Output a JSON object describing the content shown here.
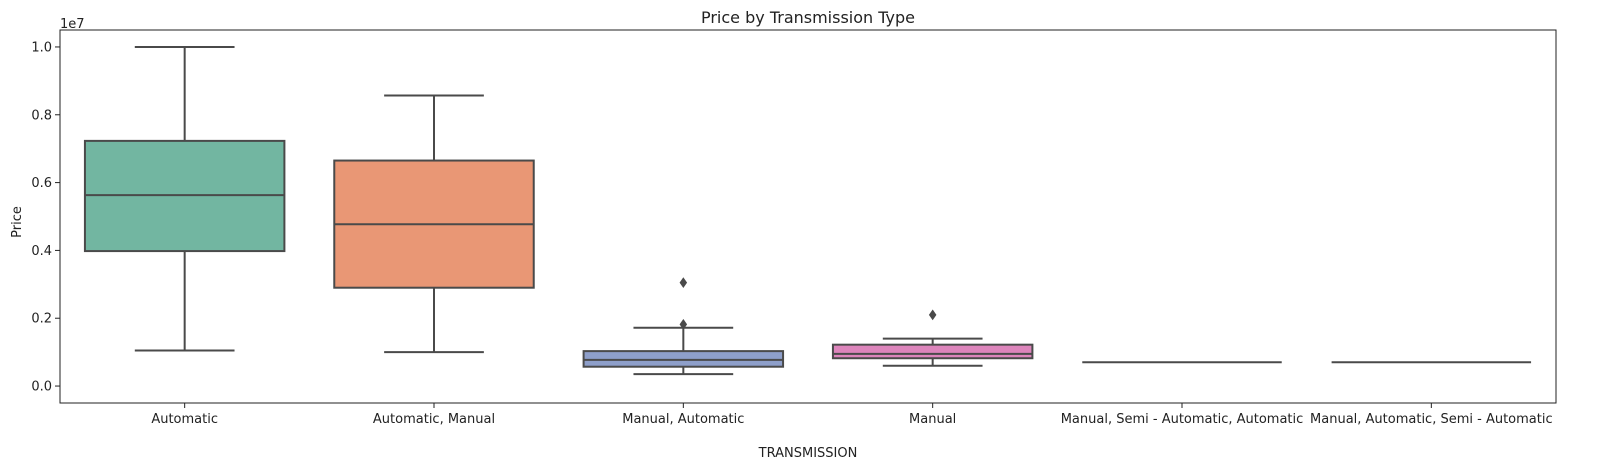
{
  "chart_data": {
    "type": "box",
    "title": "Price by Transmission Type",
    "xlabel": "TRANSMISSION",
    "ylabel": "Price",
    "y_scale_label": "1e7",
    "ylim": [
      -0.05,
      1.05
    ],
    "y_ticks": [
      0.0,
      0.2,
      0.4,
      0.6,
      0.8,
      1.0
    ],
    "y_tick_labels": [
      "0.0",
      "0.2",
      "0.4",
      "0.6",
      "0.8",
      "1.0"
    ],
    "grid": false,
    "legend": "none",
    "categories": [
      "Automatic",
      "Automatic, Manual",
      "Manual, Automatic",
      "Manual",
      "Manual, Semi - Automatic, Automatic",
      "Manual, Automatic, Semi - Automatic"
    ],
    "boxes": [
      {
        "color": "#72b6a1",
        "whisker_low": 0.105,
        "q1": 0.398,
        "median": 0.563,
        "q3": 0.723,
        "whisker_high": 1.0,
        "outliers": []
      },
      {
        "color": "#e99775",
        "whisker_low": 0.1,
        "q1": 0.29,
        "median": 0.477,
        "q3": 0.665,
        "whisker_high": 0.857,
        "outliers": []
      },
      {
        "color": "#8e9fca",
        "whisker_low": 0.035,
        "q1": 0.057,
        "median": 0.077,
        "q3": 0.103,
        "whisker_high": 0.172,
        "outliers": [
          0.182,
          0.305
        ]
      },
      {
        "color": "#dd85bc",
        "whisker_low": 0.06,
        "q1": 0.082,
        "median": 0.095,
        "q3": 0.122,
        "whisker_high": 0.14,
        "outliers": [
          0.21
        ]
      },
      {
        "color": "#a5d559",
        "whisker_low": 0.07,
        "q1": 0.07,
        "median": 0.07,
        "q3": 0.07,
        "whisker_high": 0.07,
        "outliers": []
      },
      {
        "color": "#fed94d",
        "whisker_low": 0.07,
        "q1": 0.07,
        "median": 0.07,
        "q3": 0.07,
        "whisker_high": 0.07,
        "outliers": []
      }
    ]
  }
}
